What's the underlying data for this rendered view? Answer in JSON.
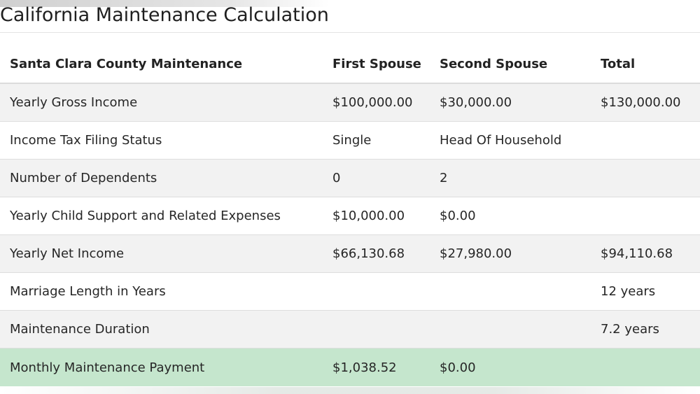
{
  "page": {
    "title": "California Maintenance Calculation"
  },
  "table": {
    "headers": [
      "Santa Clara County Maintenance",
      "First Spouse",
      "Second Spouse",
      "Total"
    ],
    "rows": [
      {
        "label": "Yearly Gross Income",
        "first": "$100,000.00",
        "second": "$30,000.00",
        "total": "$130,000.00"
      },
      {
        "label": "Income Tax Filing Status",
        "first": "Single",
        "second": "Head Of Household",
        "total": ""
      },
      {
        "label": "Number of Dependents",
        "first": "0",
        "second": "2",
        "total": ""
      },
      {
        "label": "Yearly Child Support and Related Expenses",
        "first": "$10,000.00",
        "second": "$0.00",
        "total": ""
      },
      {
        "label": "Yearly Net Income",
        "first": "$66,130.68",
        "second": "$27,980.00",
        "total": "$94,110.68"
      },
      {
        "label": "Marriage Length in Years",
        "first": "",
        "second": "",
        "total": "12 years"
      },
      {
        "label": "Maintenance Duration",
        "first": "",
        "second": "",
        "total": "7.2 years"
      },
      {
        "label": "Monthly Maintenance Payment",
        "first": "$1,038.52",
        "second": "$0.00",
        "total": ""
      }
    ]
  },
  "colors": {
    "highlight_row": "#c5e6cd",
    "striped_row": "#f2f2f2"
  }
}
